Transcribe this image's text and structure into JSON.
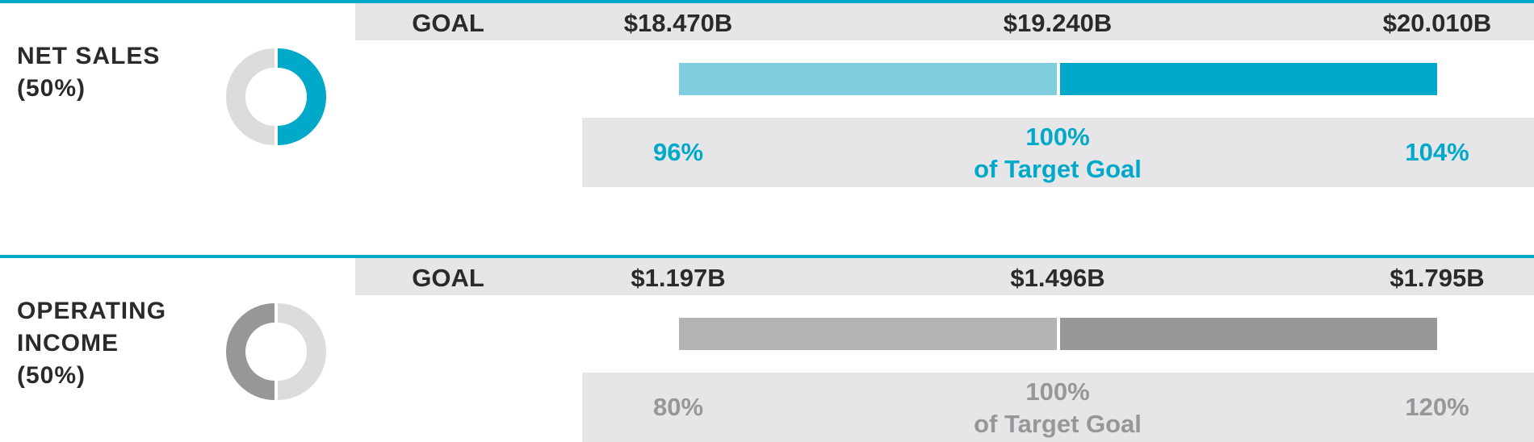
{
  "colors": {
    "accent": "#00a9c9",
    "accent_light": "#7fcee0",
    "gray_dark": "#97979a",
    "gray_light": "#b4b4b7",
    "donut_rest": "#dcdcde",
    "band": "#e6e6e8"
  },
  "chart_data": [
    {
      "type": "bar",
      "label": "NET SALES",
      "weight": "(50%)",
      "weight_fraction": 0.5,
      "goal_title": "GOAL",
      "goal_values": [
        "$18.470B",
        "$19.240B",
        "$20.010B"
      ],
      "percent_labels": [
        "96%",
        "100%",
        "104%"
      ],
      "target_label": "of Target Goal",
      "range_percent": [
        96,
        104
      ],
      "target_percent": 100
    },
    {
      "type": "bar",
      "label": "OPERATING INCOME",
      "weight": "(50%)",
      "weight_fraction": 0.5,
      "goal_title": "GOAL",
      "goal_values": [
        "$1.197B",
        "$1.496B",
        "$1.795B"
      ],
      "percent_labels": [
        "80%",
        "100%",
        "120%"
      ],
      "target_label": "of Target Goal",
      "range_percent": [
        80,
        120
      ],
      "target_percent": 100
    }
  ]
}
